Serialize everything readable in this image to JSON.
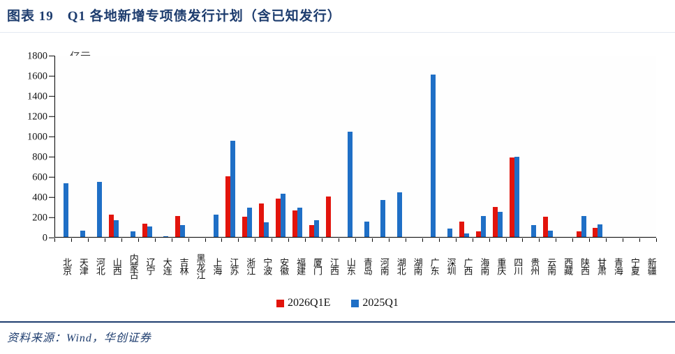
{
  "title": "图表 19　Q1 各地新增专项债发行计划（含已知发行）",
  "unit_label": "亿元",
  "source": "资料来源：Wind，华创证券",
  "colors": {
    "title_navy": "#1d3c6e",
    "series_red": "#e2140c",
    "series_blue": "#1f6fc6",
    "axis": "#000000"
  },
  "legend": [
    {
      "label": "2026Q1E",
      "color": "#e2140c"
    },
    {
      "label": "2025Q1",
      "color": "#1f6fc6"
    }
  ],
  "chart_data": {
    "type": "bar",
    "title": "Q1 各地新增专项债发行计划（含已知发行）",
    "xlabel": "",
    "ylabel": "亿元",
    "ylim": [
      0,
      1800
    ],
    "ytick_step": 200,
    "grid": false,
    "legend_position": "bottom",
    "categories": [
      "北京",
      "天津",
      "河北",
      "山西",
      "内蒙古",
      "辽宁",
      "大连",
      "吉林",
      "黑龙江",
      "上海",
      "江苏",
      "浙江",
      "宁波",
      "安徽",
      "福建",
      "厦门",
      "江西",
      "山东",
      "青岛",
      "河南",
      "湖北",
      "湖南",
      "广东",
      "深圳",
      "广西",
      "海南",
      "重庆",
      "四川",
      "贵州",
      "云南",
      "西藏",
      "陕西",
      "甘肃",
      "青海",
      "宁夏",
      "新疆"
    ],
    "series": [
      {
        "name": "2026Q1E",
        "color": "#e2140c",
        "values": [
          0,
          0,
          0,
          225,
          0,
          135,
          0,
          205,
          0,
          0,
          600,
          200,
          330,
          380,
          265,
          115,
          405,
          0,
          0,
          0,
          0,
          0,
          0,
          0,
          155,
          55,
          300,
          790,
          0,
          200,
          0,
          55,
          90,
          0,
          0,
          0
        ]
      },
      {
        "name": "2025Q1",
        "color": "#1f6fc6",
        "values": [
          530,
          60,
          545,
          165,
          55,
          105,
          10,
          120,
          0,
          225,
          955,
          290,
          145,
          430,
          290,
          165,
          0,
          1045,
          155,
          365,
          445,
          0,
          1615,
          80,
          35,
          205,
          250,
          795,
          120,
          60,
          0,
          210,
          125,
          0,
          0,
          0
        ]
      }
    ]
  }
}
